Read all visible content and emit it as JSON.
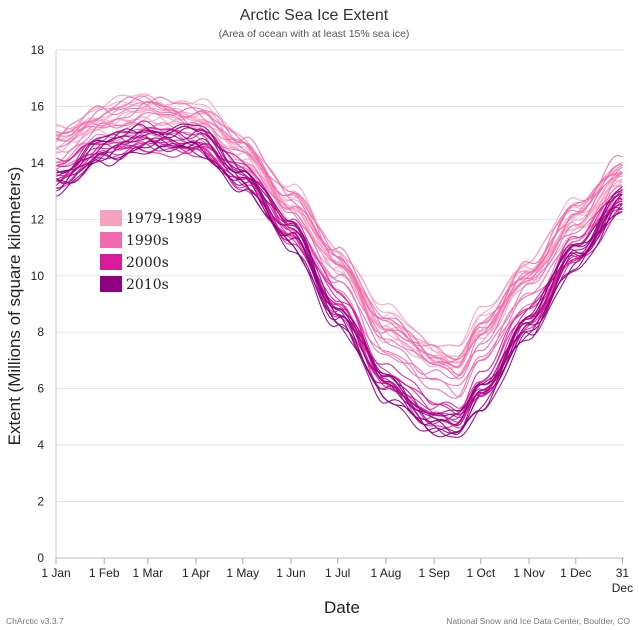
{
  "chart_data": {
    "type": "line",
    "title": "Arctic Sea Ice Extent",
    "subtitle": "(Area of ocean with at least 15% sea ice)",
    "xlabel": "Date",
    "ylabel": "Extent (Millions of square kilometers)",
    "ylim": [
      0,
      18
    ],
    "yticks": [
      0,
      2,
      4,
      6,
      8,
      10,
      12,
      14,
      16,
      18
    ],
    "xlim": [
      0,
      365
    ],
    "xticks": [
      {
        "day": 0,
        "label": "1 Jan"
      },
      {
        "day": 31,
        "label": "1 Feb"
      },
      {
        "day": 59,
        "label": "1 Mar"
      },
      {
        "day": 90,
        "label": "1 Apr"
      },
      {
        "day": 120,
        "label": "1 May"
      },
      {
        "day": 151,
        "label": "1 Jun"
      },
      {
        "day": 181,
        "label": "1 Jul"
      },
      {
        "day": 212,
        "label": "1 Aug"
      },
      {
        "day": 243,
        "label": "1 Sep"
      },
      {
        "day": 273,
        "label": "1 Oct"
      },
      {
        "day": 304,
        "label": "1 Nov"
      },
      {
        "day": 334,
        "label": "1 Dec"
      },
      {
        "day": 364,
        "label": "31",
        "label2": "Dec"
      }
    ],
    "grid": true,
    "legend_position": "left-middle",
    "legend": [
      {
        "name": "1979-1989",
        "color": "#f7a1c1"
      },
      {
        "name": "1990s",
        "color": "#f06aad"
      },
      {
        "name": "2000s",
        "color": "#d81b9a"
      },
      {
        "name": "2010s",
        "color": "#8e0080"
      }
    ],
    "key_days": [
      0,
      31,
      59,
      90,
      120,
      151,
      181,
      212,
      243,
      258,
      273,
      304,
      334,
      364
    ],
    "decade_envelope_mean": [
      {
        "name": "1979-1989",
        "values": [
          14.8,
          15.6,
          15.9,
          15.7,
          14.5,
          12.6,
          10.6,
          8.3,
          7.3,
          7.0,
          8.2,
          10.2,
          12.1,
          13.7
        ]
      },
      {
        "name": "1990s",
        "values": [
          14.4,
          15.3,
          15.6,
          15.3,
          14.2,
          12.3,
          10.2,
          7.8,
          6.7,
          6.4,
          7.6,
          9.7,
          11.8,
          13.5
        ]
      },
      {
        "name": "2000s",
        "values": [
          13.8,
          14.8,
          15.1,
          14.9,
          13.8,
          11.8,
          9.3,
          6.6,
          5.4,
          5.2,
          6.3,
          8.8,
          11.1,
          12.9
        ]
      },
      {
        "name": "2010s",
        "values": [
          13.2,
          14.2,
          14.7,
          14.6,
          13.3,
          11.2,
          8.4,
          5.8,
          4.6,
          4.4,
          5.5,
          8.0,
          10.5,
          12.5
        ]
      }
    ],
    "credits": {
      "left": "ChArctic v3.3.7",
      "right": "National Snow and Ice Data Center, Boulder, CO"
    }
  }
}
